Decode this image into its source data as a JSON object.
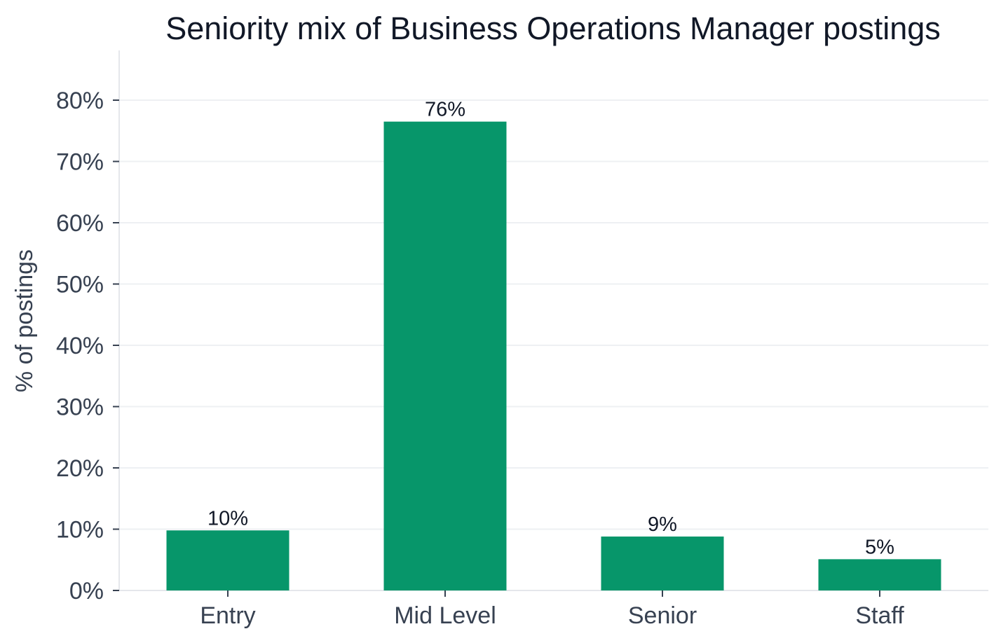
{
  "chart_data": {
    "type": "bar",
    "title": "Seniority mix of Business Operations Manager postings",
    "ylabel": "% of postings",
    "xlabel": "",
    "categories": [
      "Entry",
      "Mid Level",
      "Senior",
      "Staff"
    ],
    "values": [
      9.8,
      76.5,
      8.8,
      5.1
    ],
    "value_labels": [
      "10%",
      "76%",
      "9%",
      "5%"
    ],
    "ylim": [
      0,
      80
    ],
    "yticks": [
      0,
      10,
      20,
      30,
      40,
      50,
      60,
      70,
      80
    ],
    "ytick_labels": [
      "0%",
      "10%",
      "20%",
      "30%",
      "40%",
      "50%",
      "60%",
      "70%",
      "80%"
    ],
    "bar_color": "#07966a",
    "grid": true,
    "legend": "none"
  }
}
